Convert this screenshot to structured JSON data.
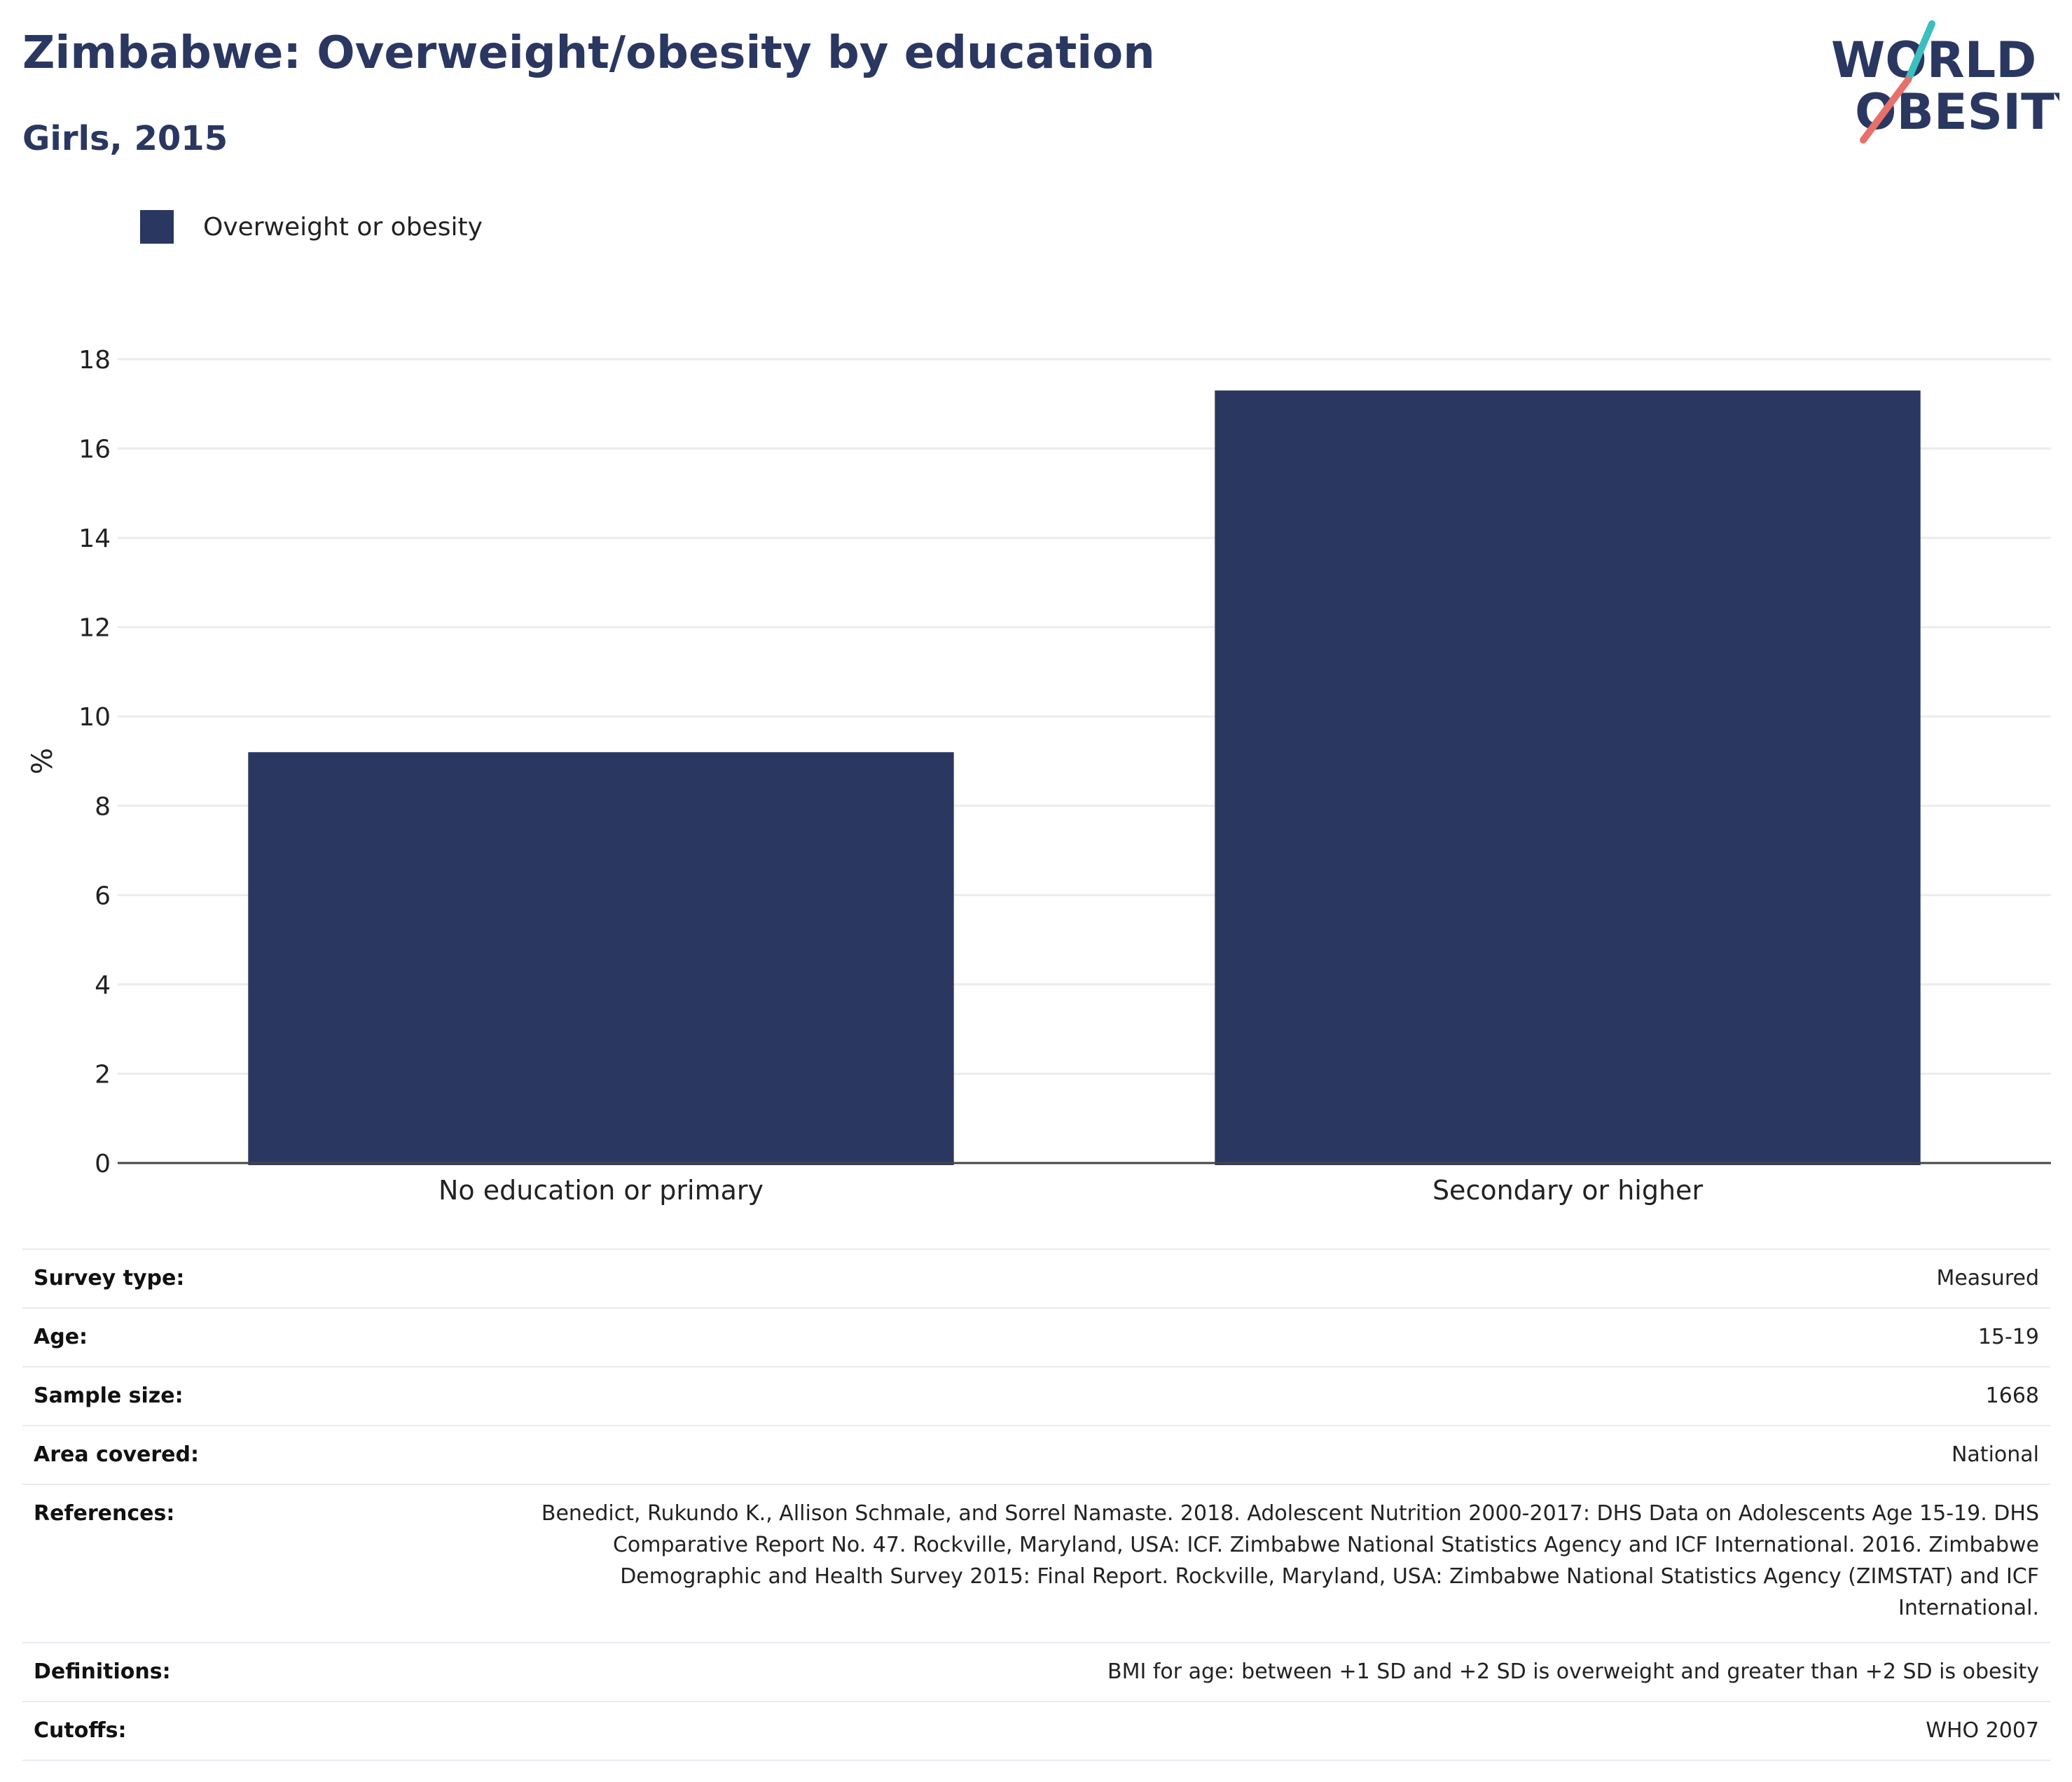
{
  "header": {
    "title": "Zimbabwe: Overweight/obesity by education",
    "subtitle": "Girls, 2015"
  },
  "logo": {
    "line1": "WORLD",
    "line2": "OBESITY",
    "colors": {
      "text": "#2a3761",
      "teal": "#3bbfbf",
      "coral": "#e8706a"
    }
  },
  "legend": {
    "items": [
      {
        "label": "Overweight or obesity",
        "color": "#2a3761"
      }
    ],
    "placement": "top-left"
  },
  "chart_data": {
    "type": "bar",
    "title": "Zimbabwe: Overweight/obesity by education",
    "subtitle": "Girls, 2015",
    "xlabel": "",
    "ylabel": "%",
    "categories": [
      "No education or primary",
      "Secondary or higher"
    ],
    "series": [
      {
        "name": "Overweight or obesity",
        "values": [
          9.2,
          17.3
        ],
        "color": "#2a3761"
      }
    ],
    "ylim": [
      0,
      18
    ],
    "yticks": [
      0,
      2,
      4,
      6,
      8,
      10,
      12,
      14,
      16,
      18
    ],
    "grid": true,
    "legend_placement": "top-left"
  },
  "meta": {
    "rows": [
      {
        "label": "Survey type:",
        "value": "Measured"
      },
      {
        "label": "Age:",
        "value": "15-19"
      },
      {
        "label": "Sample size:",
        "value": "1668"
      },
      {
        "label": "Area covered:",
        "value": "National"
      },
      {
        "label": "References:",
        "value": "Benedict, Rukundo K., Allison Schmale, and Sorrel Namaste. 2018. Adolescent Nutrition 2000-2017: DHS Data on Adolescents Age 15-19. DHS Comparative Report No. 47. Rockville, Maryland, USA: ICF. Zimbabwe National Statistics Agency and ICF International. 2016. Zimbabwe Demographic and Health Survey 2015: Final Report. Rockville, Maryland, USA: Zimbabwe National Statistics Agency (ZIMSTAT) and ICF International."
      },
      {
        "label": "Definitions:",
        "value": "BMI for age: between +1 SD and +2 SD is overweight and greater than +2 SD is obesity"
      },
      {
        "label": "Cutoffs:",
        "value": "WHO 2007"
      }
    ]
  }
}
